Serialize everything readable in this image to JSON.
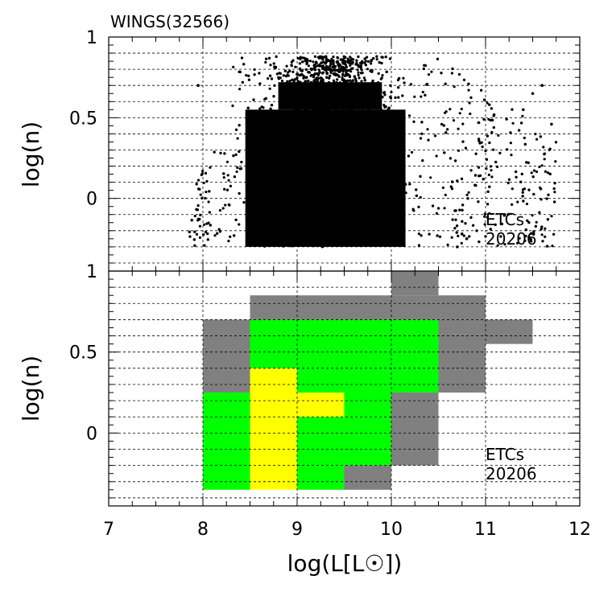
{
  "title": "WINGS(32566)",
  "xlabel": "log(L[L☉])",
  "chart_data": [
    {
      "type": "scatter",
      "panel": "top",
      "title": "WINGS(32566)",
      "xlabel": "",
      "ylabel": "log(n)",
      "xlim": [
        7,
        12
      ],
      "ylim": [
        -0.45,
        1.0
      ],
      "grid": true,
      "annotation": [
        "ETCs",
        "20206"
      ],
      "y_ticks": [
        "1",
        "0.5",
        "0"
      ],
      "x_ticks": [],
      "point_color": "#000000",
      "y_floor": -0.3,
      "envelope": {
        "x_min": 7.85,
        "x_max": 11.75,
        "dense_x_range": [
          8.2,
          10.5
        ],
        "y_max": 0.88,
        "outliers": [
          [
            7.95,
            0.7
          ],
          [
            11.6,
            0.7
          ],
          [
            11.5,
            0.65
          ],
          [
            11.4,
            0.55
          ],
          [
            11.7,
            0.46
          ],
          [
            10.75,
            -0.22
          ],
          [
            10.8,
            -0.25
          ],
          [
            10.7,
            -0.3
          ]
        ]
      }
    },
    {
      "type": "heatmap",
      "panel": "bottom",
      "xlabel": "log(L[L☉])",
      "ylabel": "log(n)",
      "xlim": [
        7,
        12
      ],
      "ylim": [
        -0.45,
        1.0
      ],
      "grid": true,
      "annotation": [
        "ETCs",
        "20206"
      ],
      "y_ticks": [
        "1",
        "0.5",
        "0"
      ],
      "x_ticks": [
        "7",
        "8",
        "9",
        "10",
        "11",
        "12"
      ],
      "colors": {
        "gray": "#808080",
        "green": "#00ff00",
        "yellow": "#ffff00"
      },
      "cells": [
        {
          "x0": 10.0,
          "x1": 10.5,
          "y0": 0.85,
          "y1": 1.0,
          "level": "gray"
        },
        {
          "x0": 8.5,
          "x1": 11.0,
          "y0": 0.7,
          "y1": 0.85,
          "level": "gray"
        },
        {
          "x0": 8.0,
          "x1": 8.5,
          "y0": 0.25,
          "y1": 0.7,
          "level": "gray"
        },
        {
          "x0": 10.5,
          "x1": 11.0,
          "y0": 0.25,
          "y1": 0.7,
          "level": "gray"
        },
        {
          "x0": 11.0,
          "x1": 11.5,
          "y0": 0.55,
          "y1": 0.7,
          "level": "gray"
        },
        {
          "x0": 10.0,
          "x1": 10.5,
          "y0": -0.2,
          "y1": 0.25,
          "level": "gray"
        },
        {
          "x0": 9.5,
          "x1": 10.0,
          "y0": -0.35,
          "y1": -0.2,
          "level": "gray"
        },
        {
          "x0": 8.5,
          "x1": 10.5,
          "y0": 0.4,
          "y1": 0.7,
          "level": "green"
        },
        {
          "x0": 9.0,
          "x1": 10.5,
          "y0": 0.25,
          "y1": 0.4,
          "level": "green"
        },
        {
          "x0": 9.5,
          "x1": 10.0,
          "y0": 0.1,
          "y1": 0.25,
          "level": "green"
        },
        {
          "x0": 8.0,
          "x1": 8.5,
          "y0": -0.35,
          "y1": 0.25,
          "level": "green"
        },
        {
          "x0": 9.0,
          "x1": 10.0,
          "y0": -0.2,
          "y1": 0.1,
          "level": "green"
        },
        {
          "x0": 9.0,
          "x1": 9.5,
          "y0": -0.35,
          "y1": -0.2,
          "level": "green"
        },
        {
          "x0": 8.5,
          "x1": 9.0,
          "y0": -0.35,
          "y1": 0.4,
          "level": "yellow"
        },
        {
          "x0": 9.0,
          "x1": 9.5,
          "y0": 0.1,
          "y1": 0.25,
          "level": "yellow"
        }
      ]
    }
  ]
}
